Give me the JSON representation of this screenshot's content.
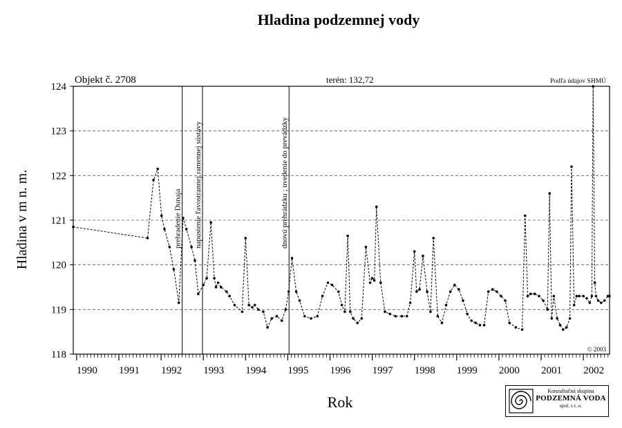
{
  "chart_data": {
    "type": "line",
    "title": "Hladina podzemnej vody",
    "object_label": "Objekt č. 2708",
    "terrain_label": "terén: 132,72",
    "source_label": "Podľa údajov SHMÚ",
    "copyright": "© 2003",
    "xlabel": "Rok",
    "ylabel": "Hladina v m n. m.",
    "xlim": [
      1989.92,
      2002.62
    ],
    "ylim": [
      118,
      124
    ],
    "x_ticks": [
      1990,
      1991,
      1992,
      1993,
      1994,
      1995,
      1996,
      1997,
      1998,
      1999,
      2000,
      2001,
      2002
    ],
    "x_tick_labels": [
      "1990",
      "1991",
      "1992",
      "1993",
      "1994",
      "1995",
      "1996",
      "1997",
      "1998",
      "1999",
      "2000",
      "2001",
      "2002"
    ],
    "y_ticks": [
      118,
      119,
      120,
      121,
      122,
      123,
      124
    ],
    "y_tick_labels": [
      "118",
      "119",
      "120",
      "121",
      "122",
      "123",
      "124"
    ],
    "grid": "horizontal dashed",
    "events": [
      {
        "x": 1992.5,
        "label": "prehradenie Dunaja"
      },
      {
        "x": 1992.98,
        "label": "napustenie ľavostrannej ramennej sústavy"
      },
      {
        "x": 1995.03,
        "label": "dnovú prehrádzku ; uvedenie do prevádzky"
      }
    ],
    "series": [
      {
        "name": "",
        "x": [
          1989.92,
          1991.68,
          1991.82,
          1991.92,
          1992.01,
          1992.08,
          1992.2,
          1992.3,
          1992.42,
          1992.52,
          1992.6,
          1992.72,
          1992.8,
          1992.88,
          1993.0,
          1993.08,
          1993.18,
          1993.26,
          1993.3,
          1993.35,
          1993.42,
          1993.55,
          1993.62,
          1993.74,
          1993.92,
          1994.0,
          1994.08,
          1994.16,
          1994.22,
          1994.3,
          1994.42,
          1994.52,
          1994.62,
          1994.74,
          1994.86,
          1994.95,
          1995.02,
          1995.1,
          1995.2,
          1995.28,
          1995.4,
          1995.55,
          1995.7,
          1995.82,
          1995.95,
          1996.05,
          1996.2,
          1996.28,
          1996.35,
          1996.42,
          1996.48,
          1996.55,
          1996.65,
          1996.75,
          1996.85,
          1996.95,
          1997.0,
          1997.05,
          1997.1,
          1997.2,
          1997.3,
          1997.42,
          1997.55,
          1997.7,
          1997.82,
          1997.9,
          1998.0,
          1998.05,
          1998.12,
          1998.2,
          1998.3,
          1998.38,
          1998.45,
          1998.55,
          1998.65,
          1998.75,
          1998.85,
          1998.95,
          1999.05,
          1999.15,
          1999.25,
          1999.35,
          1999.45,
          1999.55,
          1999.65,
          1999.75,
          1999.85,
          1999.95,
          2000.05,
          2000.15,
          2000.25,
          2000.4,
          2000.55,
          2000.62,
          2000.68,
          2000.75,
          2000.85,
          2000.95,
          2001.05,
          2001.15,
          2001.2,
          2001.25,
          2001.3,
          2001.38,
          2001.45,
          2001.52,
          2001.6,
          2001.68,
          2001.72,
          2001.78,
          2001.84,
          2001.9,
          2002.0,
          2002.08,
          2002.15,
          2002.2,
          2002.23,
          2002.27,
          2002.3,
          2002.35,
          2002.42,
          2002.5,
          2002.58,
          2002.62
        ],
        "y": [
          120.85,
          120.6,
          121.9,
          122.15,
          121.1,
          120.8,
          120.4,
          119.9,
          119.15,
          121.05,
          120.8,
          120.4,
          120.1,
          119.35,
          119.55,
          119.7,
          120.95,
          119.7,
          119.5,
          119.6,
          119.5,
          119.4,
          119.3,
          119.1,
          118.95,
          120.6,
          119.1,
          119.05,
          119.1,
          119.0,
          118.95,
          118.6,
          118.8,
          118.85,
          118.75,
          119.0,
          119.4,
          120.15,
          119.4,
          119.2,
          118.85,
          118.8,
          118.85,
          119.3,
          119.6,
          119.55,
          119.4,
          119.1,
          118.95,
          120.65,
          118.95,
          118.8,
          118.7,
          118.8,
          120.4,
          119.6,
          119.7,
          119.65,
          121.3,
          119.6,
          118.95,
          118.9,
          118.85,
          118.85,
          118.85,
          119.15,
          120.3,
          119.4,
          119.45,
          120.2,
          119.4,
          118.95,
          120.6,
          118.85,
          118.7,
          119.1,
          119.4,
          119.55,
          119.45,
          119.2,
          118.9,
          118.75,
          118.7,
          118.65,
          118.65,
          119.4,
          119.45,
          119.4,
          119.3,
          119.2,
          118.7,
          118.6,
          118.55,
          121.1,
          119.3,
          119.35,
          119.35,
          119.3,
          119.2,
          119.0,
          121.6,
          118.8,
          119.3,
          118.8,
          118.65,
          118.55,
          118.6,
          118.8,
          122.2,
          119.1,
          119.3,
          119.3,
          119.3,
          119.25,
          119.15,
          119.3,
          124.0,
          119.6,
          119.3,
          119.2,
          119.15,
          119.2,
          119.3,
          119.3
        ]
      }
    ]
  },
  "logo": {
    "line1": "Konzultačná skupina",
    "line2": "PODZEMNÁ VODA",
    "line3": "spol. s r. o."
  },
  "colors": {
    "axis": "#000000",
    "grid": "#555555",
    "line": "#000000"
  }
}
